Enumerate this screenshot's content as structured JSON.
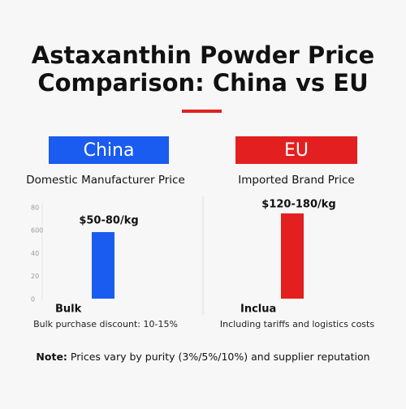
{
  "header": {
    "title_lines": [
      "Astaxanthin Powder Price",
      "Comparison: China vs EU"
    ]
  },
  "panels": [
    {
      "heading": "China",
      "subtitle": "Domestic Manufacturer Price",
      "axis_labels": [
        "80",
        "600",
        "40",
        "20",
        "0"
      ],
      "price": "$50-80/kg",
      "category": "Bulk",
      "caption": "Bulk purchase discount: 10-15%"
    },
    {
      "heading": "EU",
      "subtitle": "Imported Brand Price",
      "price": "$120-180/kg",
      "category": "Inclua",
      "caption": "Including tariffs and logistics costs"
    }
  ],
  "note": {
    "label": "Note:",
    "text": "Prices vary by purity (3%/5%/10%) and supplier reputation"
  }
}
